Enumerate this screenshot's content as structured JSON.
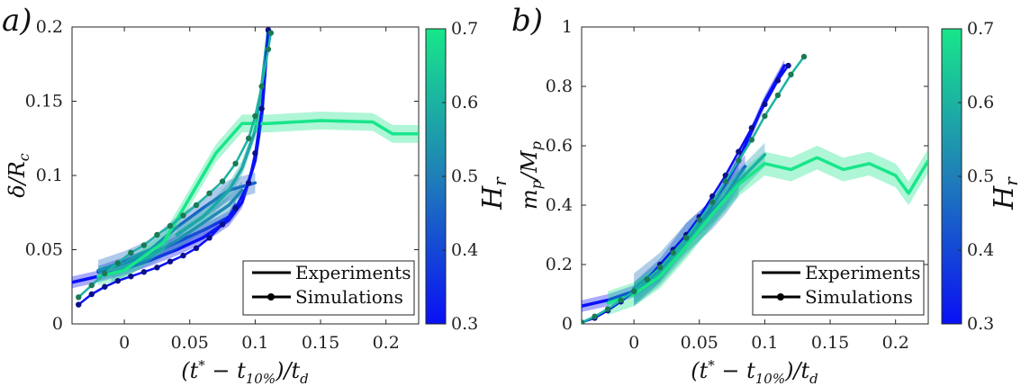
{
  "colors": {
    "low": "#0a10f5",
    "mid": "#1f7fb8",
    "high": "#18e68a",
    "axis": "#262626"
  },
  "chart_data": [
    {
      "type": "line",
      "panel_label": "a)",
      "xlabel": "(t* − t10%)/td",
      "ylabel": "δ/Rc",
      "xlim": [
        -0.04,
        0.225
      ],
      "ylim": [
        0,
        0.2
      ],
      "xticks": [
        0,
        0.05,
        0.1,
        0.15,
        0.2
      ],
      "xtick_labels": [
        "0",
        "0.05",
        "0.1",
        "0.15",
        "0.2"
      ],
      "yticks": [
        0,
        0.05,
        0.1,
        0.15,
        0.2
      ],
      "ytick_labels": [
        "0",
        "0.05",
        "0.1",
        "0.15",
        "0.2"
      ],
      "legend": {
        "position": "bottom-right",
        "entries": [
          "Experiments",
          "Simulations"
        ]
      },
      "colorbar": {
        "label": "Hr",
        "range": [
          0.3,
          0.7
        ],
        "ticks": [
          "0.3",
          "0.4",
          "0.5",
          "0.6",
          "0.7"
        ]
      },
      "experiments": [
        {
          "hr": 0.3,
          "band": 0.004,
          "x": [
            -0.04,
            -0.02,
            0,
            0.02,
            0.04,
            0.06,
            0.08,
            0.09,
            0.1,
            0.105,
            0.11
          ],
          "y": [
            0.028,
            0.032,
            0.037,
            0.043,
            0.05,
            0.058,
            0.07,
            0.082,
            0.11,
            0.14,
            0.198
          ]
        },
        {
          "hr": 0.36,
          "band": 0.004,
          "x": [
            -0.02,
            0,
            0.02,
            0.04,
            0.06,
            0.08,
            0.085
          ],
          "y": [
            0.035,
            0.041,
            0.047,
            0.055,
            0.063,
            0.072,
            0.08
          ]
        },
        {
          "hr": 0.45,
          "band": 0.007,
          "x": [
            -0.02,
            0,
            0.02,
            0.04,
            0.06,
            0.08,
            0.1
          ],
          "y": [
            0.036,
            0.042,
            0.05,
            0.065,
            0.078,
            0.09,
            0.095
          ]
        },
        {
          "hr": 0.52,
          "band": 0.006,
          "x": [
            -0.01,
            0,
            0.02,
            0.04,
            0.06,
            0.08,
            0.09
          ],
          "y": [
            0.034,
            0.038,
            0.046,
            0.056,
            0.068,
            0.08,
            0.09
          ]
        },
        {
          "hr": 0.58,
          "band": 0.005,
          "x": [
            0.04,
            0.06,
            0.08,
            0.09,
            0.1,
            0.105,
            0.11
          ],
          "y": [
            0.06,
            0.072,
            0.09,
            0.105,
            0.13,
            0.16,
            0.198
          ]
        },
        {
          "hr": 0.7,
          "band": 0.006,
          "x": [
            -0.02,
            0,
            0.03,
            0.05,
            0.07,
            0.09,
            0.11,
            0.15,
            0.19,
            0.205,
            0.225
          ],
          "y": [
            0.032,
            0.036,
            0.055,
            0.085,
            0.115,
            0.135,
            0.135,
            0.137,
            0.136,
            0.128,
            0.128
          ]
        }
      ],
      "simulations": [
        {
          "hr": 0.3,
          "x": [
            -0.035,
            -0.025,
            -0.015,
            -0.005,
            0.005,
            0.015,
            0.025,
            0.035,
            0.045,
            0.055,
            0.065,
            0.075,
            0.085,
            0.095,
            0.1,
            0.105,
            0.11
          ],
          "y": [
            0.013,
            0.02,
            0.025,
            0.029,
            0.032,
            0.035,
            0.038,
            0.042,
            0.046,
            0.051,
            0.058,
            0.067,
            0.078,
            0.095,
            0.115,
            0.145,
            0.198
          ]
        },
        {
          "hr": 0.6,
          "x": [
            -0.035,
            -0.025,
            -0.015,
            -0.005,
            0.005,
            0.015,
            0.025,
            0.035,
            0.045,
            0.055,
            0.065,
            0.075,
            0.085,
            0.095,
            0.1,
            0.105,
            0.11,
            0.112
          ],
          "y": [
            0.018,
            0.026,
            0.034,
            0.041,
            0.048,
            0.053,
            0.06,
            0.066,
            0.073,
            0.08,
            0.088,
            0.096,
            0.108,
            0.125,
            0.14,
            0.16,
            0.185,
            0.196
          ]
        }
      ]
    },
    {
      "type": "line",
      "panel_label": "b)",
      "xlabel": "(t* − t10%)/td",
      "ylabel": "mp/Mp",
      "xlim": [
        -0.04,
        0.225
      ],
      "ylim": [
        0,
        1
      ],
      "xticks": [
        0,
        0.05,
        0.1,
        0.15,
        0.2
      ],
      "xtick_labels": [
        "0",
        "0.05",
        "0.1",
        "0.15",
        "0.2"
      ],
      "yticks": [
        0,
        0.2,
        0.4,
        0.6,
        0.8,
        1
      ],
      "ytick_labels": [
        "0",
        "0.2",
        "0.4",
        "0.6",
        "0.8",
        "1"
      ],
      "legend": {
        "position": "bottom-right",
        "entries": [
          "Experiments",
          "Simulations"
        ]
      },
      "colorbar": {
        "label": "Hr",
        "range": [
          0.3,
          0.7
        ],
        "ticks": [
          "0.3",
          "0.4",
          "0.5",
          "0.6",
          "0.7"
        ]
      },
      "experiments": [
        {
          "hr": 0.3,
          "band": 0.02,
          "x": [
            -0.04,
            -0.02,
            0,
            0.02,
            0.04,
            0.06,
            0.08,
            0.1,
            0.115
          ],
          "y": [
            0.06,
            0.08,
            0.11,
            0.17,
            0.27,
            0.4,
            0.55,
            0.75,
            0.87
          ]
        },
        {
          "hr": 0.38,
          "band": 0.04,
          "x": [
            0.0,
            0.02,
            0.04,
            0.06,
            0.07,
            0.08,
            0.085
          ],
          "y": [
            0.1,
            0.18,
            0.3,
            0.38,
            0.43,
            0.5,
            0.53
          ]
        },
        {
          "hr": 0.48,
          "band": 0.05,
          "x": [
            0.0,
            0.02,
            0.04,
            0.06,
            0.07,
            0.08
          ],
          "y": [
            0.12,
            0.19,
            0.29,
            0.37,
            0.42,
            0.48
          ]
        },
        {
          "hr": 0.55,
          "band": 0.04,
          "x": [
            0.0,
            0.02,
            0.04,
            0.06,
            0.08,
            0.1
          ],
          "y": [
            0.1,
            0.17,
            0.27,
            0.37,
            0.48,
            0.57
          ]
        },
        {
          "hr": 0.7,
          "band": 0.04,
          "x": [
            -0.02,
            0,
            0.02,
            0.04,
            0.06,
            0.08,
            0.1,
            0.12,
            0.14,
            0.16,
            0.18,
            0.2,
            0.21,
            0.225
          ],
          "y": [
            0.07,
            0.1,
            0.16,
            0.26,
            0.37,
            0.47,
            0.54,
            0.52,
            0.56,
            0.52,
            0.54,
            0.5,
            0.44,
            0.55
          ]
        }
      ],
      "simulations": [
        {
          "hr": 0.3,
          "x": [
            -0.04,
            -0.03,
            -0.02,
            -0.01,
            0,
            0.01,
            0.02,
            0.03,
            0.04,
            0.05,
            0.06,
            0.07,
            0.08,
            0.09,
            0.1,
            0.11,
            0.118
          ],
          "y": [
            0.005,
            0.02,
            0.045,
            0.075,
            0.11,
            0.15,
            0.2,
            0.25,
            0.3,
            0.36,
            0.43,
            0.5,
            0.58,
            0.66,
            0.74,
            0.82,
            0.87
          ]
        },
        {
          "hr": 0.6,
          "x": [
            -0.04,
            -0.03,
            -0.02,
            -0.01,
            0,
            0.01,
            0.02,
            0.03,
            0.04,
            0.05,
            0.06,
            0.07,
            0.08,
            0.09,
            0.1,
            0.11,
            0.12,
            0.13
          ],
          "y": [
            0.005,
            0.025,
            0.05,
            0.08,
            0.11,
            0.15,
            0.19,
            0.24,
            0.29,
            0.35,
            0.41,
            0.48,
            0.55,
            0.62,
            0.7,
            0.77,
            0.84,
            0.9
          ]
        }
      ]
    }
  ]
}
